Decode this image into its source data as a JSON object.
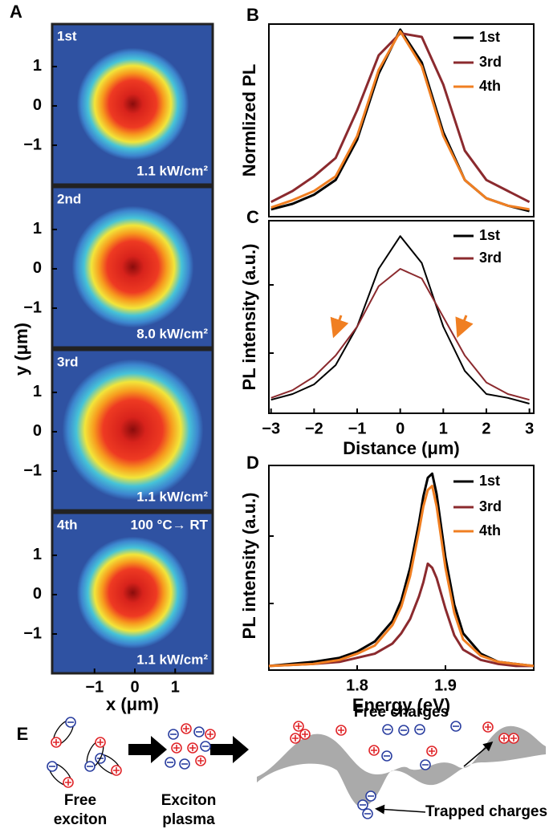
{
  "chart_data": [
    {
      "type": "heatmap",
      "panel": "A",
      "xlabel": "x (μm)",
      "ylabel": "y (μm)",
      "xlim": [
        -2.05,
        1.93
      ],
      "ylim": [
        -2.0,
        2.08
      ],
      "xticks": [
        {
          "value": -1,
          "label": "−1"
        },
        0,
        1
      ],
      "yticks": [
        1,
        0,
        {
          "value": -1,
          "label": "−1"
        }
      ],
      "panels": [
        {
          "label": "1st",
          "annotation": "1.1 kW/cm²"
        },
        {
          "label": "2nd",
          "annotation": "8.0 kW/cm²"
        },
        {
          "label": "3rd",
          "annotation": "1.1 kW/cm²"
        },
        {
          "label": "4th",
          "annotation": "1.1 kW/cm²",
          "note": "100 °C→ RT"
        }
      ]
    },
    {
      "type": "line",
      "panel": "B",
      "ylabel": "Normlized PL",
      "xlim": [
        -3.05,
        3.1
      ],
      "ylim": [
        0,
        1.05
      ],
      "x": [
        -3,
        -2.5,
        -2,
        -1.5,
        -1,
        -0.5,
        0,
        0.5,
        1,
        1.5,
        2,
        2.5,
        3
      ],
      "series": [
        {
          "name": "1st",
          "color": "#000000",
          "values": [
            0.04,
            0.07,
            0.12,
            0.2,
            0.42,
            0.78,
            1.02,
            0.84,
            0.46,
            0.2,
            0.1,
            0.06,
            0.03
          ]
        },
        {
          "name": "3rd",
          "color": "#8b2a2e",
          "values": [
            0.08,
            0.14,
            0.22,
            0.32,
            0.58,
            0.88,
            1.0,
            0.98,
            0.72,
            0.36,
            0.2,
            0.14,
            0.08
          ]
        },
        {
          "name": "4th",
          "color": "#f07f22",
          "values": [
            0.05,
            0.09,
            0.14,
            0.22,
            0.44,
            0.8,
            1.01,
            0.82,
            0.44,
            0.2,
            0.1,
            0.06,
            0.04
          ]
        }
      ]
    },
    {
      "type": "line",
      "panel": "C",
      "ylabel": "PL intensity (a.u.)",
      "xlabel": "Distance (μm)",
      "xlim": [
        -3.05,
        3.1
      ],
      "ylim": [
        0,
        1
      ],
      "xticks": [
        {
          "value": -3,
          "label": "−3"
        },
        {
          "value": -2,
          "label": "−2"
        },
        {
          "value": -1,
          "label": "−1"
        },
        0,
        1,
        2,
        3
      ],
      "x": [
        -3,
        -2.5,
        -2,
        -1.5,
        -1,
        -0.5,
        0,
        0.5,
        1,
        1.5,
        2,
        2.5,
        3
      ],
      "series": [
        {
          "name": "1st",
          "color": "#000000",
          "values": [
            0.07,
            0.1,
            0.15,
            0.25,
            0.45,
            0.75,
            0.92,
            0.78,
            0.45,
            0.22,
            0.1,
            0.08,
            0.05
          ]
        },
        {
          "name": "3rd",
          "color": "#8b2a2e",
          "values": [
            0.08,
            0.12,
            0.19,
            0.3,
            0.45,
            0.66,
            0.75,
            0.7,
            0.5,
            0.3,
            0.16,
            0.1,
            0.07
          ]
        }
      ]
    },
    {
      "type": "line",
      "panel": "D",
      "ylabel": "PL intensity (a.u.)",
      "xlabel": "Energy (eV)",
      "xlim": [
        1.7,
        2.0
      ],
      "ylim": [
        0,
        1
      ],
      "xticks": [
        1.8,
        1.9
      ],
      "x": [
        1.7,
        1.75,
        1.78,
        1.8,
        1.82,
        1.84,
        1.85,
        1.86,
        1.87,
        1.875,
        1.88,
        1.885,
        1.89,
        1.9,
        1.91,
        1.92,
        1.94,
        1.96,
        1.98,
        2.0
      ],
      "series": [
        {
          "name": "1st",
          "color": "#000000",
          "values": [
            0.02,
            0.04,
            0.06,
            0.09,
            0.14,
            0.24,
            0.34,
            0.5,
            0.72,
            0.85,
            0.94,
            0.96,
            0.86,
            0.55,
            0.32,
            0.18,
            0.08,
            0.04,
            0.03,
            0.02
          ]
        },
        {
          "name": "3rd",
          "color": "#8b2a2e",
          "values": [
            0.02,
            0.03,
            0.04,
            0.06,
            0.08,
            0.13,
            0.18,
            0.25,
            0.36,
            0.43,
            0.52,
            0.5,
            0.45,
            0.3,
            0.17,
            0.1,
            0.05,
            0.03,
            0.02,
            0.02
          ]
        },
        {
          "name": "4th",
          "color": "#f07f22",
          "values": [
            0.02,
            0.03,
            0.05,
            0.08,
            0.12,
            0.22,
            0.31,
            0.46,
            0.68,
            0.8,
            0.88,
            0.9,
            0.8,
            0.5,
            0.28,
            0.15,
            0.07,
            0.04,
            0.03,
            0.02
          ]
        }
      ]
    }
  ],
  "diagram": {
    "panel": "E",
    "labels": [
      [
        "Free",
        "exciton"
      ],
      [
        "Exciton",
        "plasma"
      ],
      [
        "Free charges"
      ],
      [
        "Trapped charges"
      ]
    ]
  }
}
